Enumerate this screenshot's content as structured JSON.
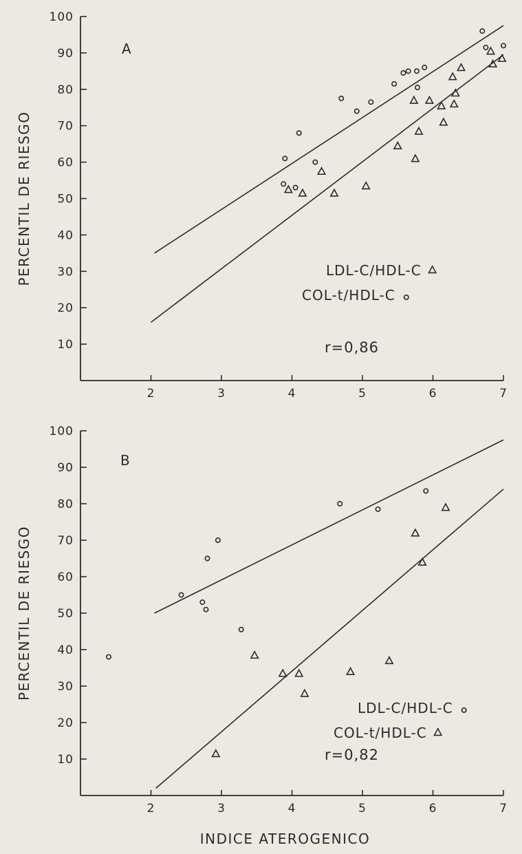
{
  "chart_data": [
    {
      "type": "scatter",
      "panel_label": "A",
      "ylabel": "PERCENTIL DE RIESGO",
      "xlabel": "",
      "xlim": [
        1,
        7
      ],
      "ylim": [
        0,
        100
      ],
      "x_ticks": [
        "2",
        "3",
        "4",
        "5",
        "6",
        "7"
      ],
      "y_ticks": [
        "100",
        "90",
        "80",
        "70",
        "60",
        "50",
        "40",
        "30",
        "20",
        "10"
      ],
      "legend": [
        {
          "text": "LDL-C/HDL-C",
          "marker": "triangle"
        },
        {
          "text": "COL-t/HDL-C",
          "marker": "circle"
        }
      ],
      "annotation": "r=0,86",
      "series": [
        {
          "marker": "circle",
          "points": [
            [
              3.9,
              61
            ],
            [
              3.88,
              54
            ],
            [
              4.05,
              53
            ],
            [
              4.1,
              68
            ],
            [
              4.33,
              60
            ],
            [
              4.7,
              77.5
            ],
            [
              4.92,
              74
            ],
            [
              5.12,
              76.5
            ],
            [
              5.45,
              81.5
            ],
            [
              5.58,
              84.5
            ],
            [
              5.65,
              85
            ],
            [
              5.77,
              85
            ],
            [
              5.78,
              80.5
            ],
            [
              5.88,
              86
            ],
            [
              6.7,
              96
            ],
            [
              6.75,
              91.5
            ],
            [
              7.0,
              92
            ]
          ],
          "fit": [
            [
              2.05,
              35
            ],
            [
              7.0,
              97.5
            ]
          ]
        },
        {
          "marker": "triangle",
          "points": [
            [
              3.95,
              52.5
            ],
            [
              4.15,
              51.5
            ],
            [
              4.42,
              57.5
            ],
            [
              4.6,
              51.5
            ],
            [
              5.05,
              53.5
            ],
            [
              5.5,
              64.5
            ],
            [
              5.73,
              77
            ],
            [
              5.75,
              61
            ],
            [
              5.8,
              68.5
            ],
            [
              5.95,
              77
            ],
            [
              6.12,
              75.5
            ],
            [
              6.15,
              71
            ],
            [
              6.28,
              83.5
            ],
            [
              6.3,
              76
            ],
            [
              6.32,
              79
            ],
            [
              6.4,
              86
            ],
            [
              6.82,
              90.5
            ],
            [
              6.85,
              87
            ],
            [
              6.98,
              88.5
            ]
          ],
          "fit": [
            [
              2.0,
              16
            ],
            [
              7.0,
              89.5
            ]
          ]
        }
      ]
    },
    {
      "type": "scatter",
      "panel_label": "B",
      "ylabel": "PERCENTIL DE RIESGO",
      "xlabel": "INDICE ATEROGENICO",
      "xlim": [
        1,
        7
      ],
      "ylim": [
        0,
        100
      ],
      "x_ticks": [
        "2",
        "3",
        "4",
        "5",
        "6",
        "7"
      ],
      "y_ticks": [
        "100",
        "90",
        "80",
        "70",
        "60",
        "50",
        "40",
        "30",
        "20",
        "10"
      ],
      "legend": [
        {
          "text": "LDL-C/HDL-C",
          "marker": "circle"
        },
        {
          "text": "COL-t/HDL-C",
          "marker": "triangle"
        }
      ],
      "annotation": "r=0,82",
      "series": [
        {
          "marker": "circle",
          "points": [
            [
              1.4,
              38
            ],
            [
              2.43,
              55
            ],
            [
              2.73,
              53
            ],
            [
              2.78,
              51
            ],
            [
              2.8,
              65
            ],
            [
              2.95,
              70
            ],
            [
              3.28,
              45.5
            ],
            [
              4.68,
              80
            ],
            [
              5.22,
              78.5
            ],
            [
              5.9,
              83.5
            ]
          ],
          "fit": [
            [
              2.05,
              50
            ],
            [
              7.0,
              97.5
            ]
          ]
        },
        {
          "marker": "triangle",
          "points": [
            [
              2.92,
              11.5
            ],
            [
              3.47,
              38.5
            ],
            [
              3.87,
              33.5
            ],
            [
              4.1,
              33.5
            ],
            [
              4.18,
              28
            ],
            [
              4.83,
              34
            ],
            [
              5.38,
              37
            ],
            [
              5.75,
              72
            ],
            [
              5.85,
              64
            ],
            [
              6.18,
              79
            ]
          ],
          "fit": [
            [
              2.07,
              2
            ],
            [
              7.0,
              84
            ]
          ]
        }
      ]
    }
  ]
}
